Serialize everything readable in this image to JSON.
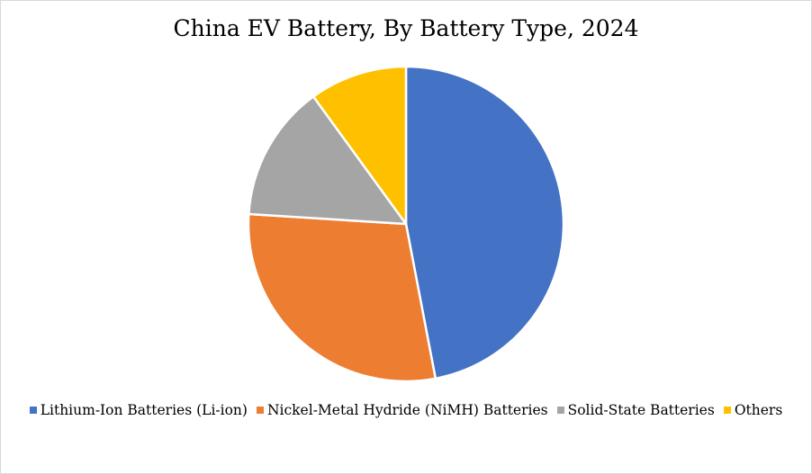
{
  "chart_data": {
    "type": "pie",
    "title": "China EV Battery, By Battery Type, 2024",
    "categories": [
      "Lithium-Ion Batteries (Li-ion)",
      "Nickel-Metal Hydride (NiMH) Batteries",
      "Solid-State Batteries",
      "Others"
    ],
    "values": [
      47,
      29,
      14,
      10
    ],
    "colors": [
      "#4472c4",
      "#ed7d31",
      "#a5a5a5",
      "#ffc000"
    ],
    "legend_position": "bottom"
  }
}
